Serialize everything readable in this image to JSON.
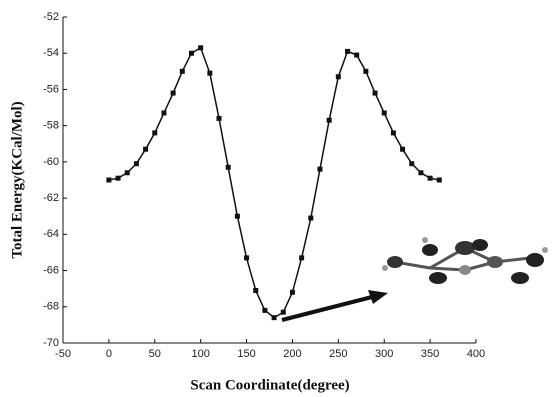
{
  "chart_data": {
    "type": "line",
    "x_label": "Scan Coordinate(degree)",
    "y_label": "Total Energy(KCal/Mol)",
    "x": [
      0,
      10,
      20,
      30,
      40,
      50,
      60,
      70,
      80,
      90,
      100,
      110,
      120,
      130,
      140,
      150,
      160,
      170,
      180,
      190,
      200,
      210,
      220,
      230,
      240,
      250,
      260,
      270,
      280,
      290,
      300,
      310,
      320,
      330,
      340,
      350,
      360
    ],
    "series": [
      {
        "color": "#111111",
        "values": [
          -61.0,
          -60.9,
          -60.6,
          -60.1,
          -59.3,
          -58.4,
          -57.3,
          -56.2,
          -55.0,
          -54.0,
          -53.7,
          -55.1,
          -57.6,
          -60.3,
          -63.0,
          -65.3,
          -67.1,
          -68.2,
          -68.6,
          -68.3,
          -67.2,
          -65.3,
          -63.1,
          -60.4,
          -57.7,
          -55.3,
          -53.9,
          -54.1,
          -55.0,
          -56.2,
          -57.3,
          -58.4,
          -59.3,
          -60.1,
          -60.6,
          -60.9,
          -61.0
        ]
      }
    ],
    "xlim": [
      -50,
      400
    ],
    "xticks": [
      -50,
      0,
      50,
      100,
      150,
      200,
      250,
      300,
      350,
      400
    ],
    "ylim": [
      -70,
      -52
    ],
    "yticks": [
      -70,
      -68,
      -66,
      -64,
      -62,
      -60,
      -58,
      -56,
      -54,
      -52
    ]
  }
}
